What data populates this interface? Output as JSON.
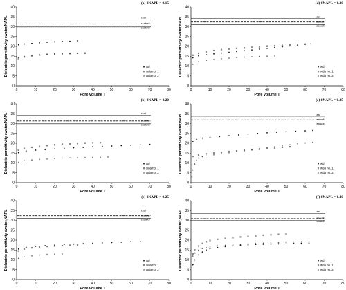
{
  "chart_data": [
    {
      "type": "scatter",
      "title": "(a) θNAPL = 0.15",
      "xlabel": "Pore volume T",
      "ylabel": "Dielectric permittivity εwater,NAPL",
      "xlim": [
        0,
        80
      ],
      "ylim": [
        0,
        40
      ],
      "xticks": [
        "0",
        "10",
        "20",
        "30",
        "40",
        "50",
        "60",
        "70",
        "80"
      ],
      "yticks": [
        "0",
        "5",
        "10",
        "15",
        "20",
        "25",
        "30",
        "35",
        "40"
      ],
      "reference_lines": [
        {
          "label": "εsat",
          "value": 33.8,
          "style": "solid"
        },
        {
          "label": "εsatwdi",
          "value": 31.4,
          "style": "dashed"
        },
        {
          "label": "εsatwdi",
          "value": 29.9,
          "style": "solid"
        }
      ],
      "series": [
        {
          "name": "wd",
          "marker": "circle",
          "x": [
            1,
            4,
            8,
            12,
            16,
            20,
            24,
            28,
            32
          ],
          "y": [
            20.8,
            21.2,
            21.5,
            21.8,
            22.1,
            22.3,
            22.5,
            22.6,
            22.8
          ]
        },
        {
          "name": "wda no. 1",
          "marker": "square",
          "x": [
            1,
            4,
            8,
            12,
            16,
            20,
            24,
            28,
            32,
            36
          ],
          "y": [
            13.8,
            14.6,
            15.2,
            15.6,
            15.9,
            16.1,
            16.3,
            16.4,
            16.5,
            16.6
          ]
        },
        {
          "name": "wda no. 2",
          "marker": "triangle",
          "x": [
            1,
            4,
            8,
            12,
            16,
            20,
            24,
            28,
            32,
            36
          ],
          "y": [
            14.3,
            15.0,
            15.5,
            15.8,
            16.0,
            16.2,
            16.3,
            16.4,
            16.5,
            16.6
          ]
        }
      ]
    },
    {
      "type": "scatter",
      "title": "(b) θNAPL = 0.20",
      "xlabel": "Pore volume T",
      "ylabel": "Dielectric permittivity εwater,NAPL",
      "xlim": [
        0,
        80
      ],
      "ylim": [
        0,
        40
      ],
      "xticks": [
        "0",
        "10",
        "20",
        "30",
        "40",
        "50",
        "60",
        "70",
        "80"
      ],
      "yticks": [
        "0",
        "5",
        "10",
        "15",
        "20",
        "25",
        "30",
        "35",
        "40"
      ],
      "reference_lines": [
        {
          "label": "εsat",
          "value": 34.3,
          "style": "solid"
        },
        {
          "label": "εsatwdi",
          "value": 31.3,
          "style": "dashed"
        },
        {
          "label": "εsatwdi",
          "value": 29.9,
          "style": "solid"
        }
      ],
      "series": [
        {
          "name": "wd",
          "marker": "circle",
          "x": [
            1,
            5,
            10,
            15,
            20,
            25,
            30,
            35,
            40,
            45,
            50,
            55,
            60,
            65,
            70
          ],
          "y": [
            15.2,
            16.1,
            16.5,
            16.8,
            17.1,
            17.4,
            17.7,
            17.9,
            18.2,
            18.4,
            18.6,
            18.8,
            19.0,
            19.2,
            19.4
          ]
        },
        {
          "name": "wda no. 1",
          "marker": "square",
          "x": [
            1,
            4,
            8,
            12,
            16,
            20,
            24,
            28,
            32,
            36,
            40,
            44
          ],
          "y": [
            16.5,
            17.3,
            17.9,
            18.4,
            18.8,
            19.2,
            19.5,
            19.7,
            19.9,
            20.1,
            20.2,
            20.3
          ]
        },
        {
          "name": "wda no. 2",
          "marker": "triangle",
          "x": [
            1,
            4,
            8,
            12,
            16,
            20,
            24,
            28,
            32,
            36,
            40,
            44,
            48
          ],
          "y": [
            10.3,
            11.2,
            11.6,
            11.9,
            12.1,
            12.3,
            12.5,
            12.6,
            12.7,
            12.8,
            12.9,
            13.0,
            13.1
          ]
        }
      ]
    },
    {
      "type": "scatter",
      "title": "(c) θNAPL = 0.25",
      "xlabel": "Pore volume T",
      "ylabel": "Dielectric permittivity εwater,NAPL",
      "xlim": [
        0,
        80
      ],
      "ylim": [
        0,
        40
      ],
      "xticks": [
        "0",
        "10",
        "20",
        "30",
        "40",
        "50",
        "60",
        "70",
        "80"
      ],
      "yticks": [
        "0",
        "5",
        "10",
        "15",
        "20",
        "25",
        "30",
        "35",
        "40"
      ],
      "reference_lines": [
        {
          "label": "εsat",
          "value": 34.2,
          "style": "solid"
        },
        {
          "label": "εsatwdi",
          "value": 32.4,
          "style": "dashed"
        },
        {
          "label": "εsatwdi",
          "value": 31.0,
          "style": "solid"
        }
      ],
      "series": [
        {
          "name": "wd",
          "marker": "circle",
          "x": [
            1,
            5,
            10,
            15,
            20,
            25,
            30,
            35,
            40,
            45,
            50,
            55,
            60,
            65
          ],
          "y": [
            15.5,
            16.4,
            16.9,
            17.2,
            17.5,
            17.8,
            18.0,
            18.2,
            18.4,
            18.6,
            18.8,
            19.0,
            19.2,
            19.3
          ]
        },
        {
          "name": "wda no. 1",
          "marker": "square",
          "x": [
            1,
            4,
            8,
            12,
            16,
            20,
            24,
            28,
            32
          ],
          "y": [
            14.5,
            15.5,
            16.1,
            16.5,
            16.8,
            17.0,
            17.2,
            17.4,
            17.5
          ]
        },
        {
          "name": "wda no. 2",
          "marker": "triangle",
          "x": [
            1,
            4,
            8,
            12,
            16,
            20,
            24
          ],
          "y": [
            10.8,
            11.6,
            12.1,
            12.5,
            12.8,
            13.0,
            13.1
          ]
        }
      ]
    },
    {
      "type": "scatter",
      "title": "(d) θNAPL = 0.30",
      "xlabel": "Pore volume T",
      "ylabel": "Dielectric permittivity εwater,NAPL",
      "xlim": [
        0,
        80
      ],
      "ylim": [
        0,
        40
      ],
      "xticks": [
        "0",
        "10",
        "20",
        "30",
        "40",
        "50",
        "60",
        "70",
        "80"
      ],
      "yticks": [
        "0",
        "5",
        "10",
        "15",
        "20",
        "25",
        "30",
        "35",
        "40"
      ],
      "reference_lines": [
        {
          "label": "εsat",
          "value": 34.1,
          "style": "solid"
        },
        {
          "label": "εsatwdi",
          "value": 32.4,
          "style": "dashed"
        },
        {
          "label": "εsatwdi",
          "value": 31.0,
          "style": "solid"
        }
      ],
      "series": [
        {
          "name": "wd",
          "marker": "circle",
          "x": [
            1,
            4,
            8,
            12,
            16,
            20,
            24,
            28,
            32,
            36,
            40,
            44,
            48,
            52,
            56,
            60,
            63
          ],
          "y": [
            14.2,
            15.2,
            15.8,
            16.2,
            16.6,
            17.0,
            17.4,
            17.8,
            18.2,
            18.6,
            19.0,
            19.4,
            19.8,
            20.2,
            20.6,
            21.0,
            21.3
          ]
        },
        {
          "name": "wda no. 1",
          "marker": "square",
          "x": [
            1,
            4,
            8,
            12,
            16,
            20,
            24,
            28,
            32,
            36,
            40,
            44,
            48,
            52,
            56,
            60
          ],
          "y": [
            15.5,
            16.5,
            17.3,
            17.9,
            18.4,
            18.7,
            19.0,
            19.2,
            19.5,
            19.8,
            20.1,
            20.3,
            20.5,
            20.7,
            20.9,
            21.1
          ]
        },
        {
          "name": "wda no. 2",
          "marker": "triangle",
          "x": [
            1,
            4,
            8,
            12,
            16,
            20,
            24,
            28,
            32,
            36,
            40,
            44
          ],
          "y": [
            11.0,
            12.3,
            12.9,
            13.4,
            13.8,
            14.1,
            14.4,
            14.6,
            14.8,
            15.0,
            15.1,
            15.2
          ]
        }
      ]
    },
    {
      "type": "scatter",
      "title": "(e) θNAPL = 0.35",
      "xlabel": "Pore volume T",
      "ylabel": "Dielectric permittivity εwater,NAPL",
      "xlim": [
        0,
        80
      ],
      "ylim": [
        0,
        40
      ],
      "xticks": [
        "0",
        "10",
        "20",
        "30",
        "40",
        "50",
        "60",
        "70",
        "80"
      ],
      "yticks": [
        "0",
        "5",
        "10",
        "15",
        "20",
        "25",
        "30",
        "35",
        "40"
      ],
      "reference_lines": [
        {
          "label": "εsat",
          "value": 33.7,
          "style": "solid"
        },
        {
          "label": "εsatwdi",
          "value": 31.8,
          "style": "dashed"
        },
        {
          "label": "εsatwdi",
          "value": 30.3,
          "style": "solid"
        }
      ],
      "series": [
        {
          "name": "wd",
          "marker": "circle",
          "x": [
            1,
            3,
            6,
            10,
            15,
            20,
            25,
            30,
            35,
            40,
            45,
            50,
            55,
            60,
            64
          ],
          "y": [
            21.0,
            22.0,
            22.6,
            23.0,
            23.4,
            23.8,
            24.2,
            24.6,
            25.0,
            25.3,
            25.6,
            25.9,
            26.1,
            26.3,
            26.5
          ]
        },
        {
          "name": "wda no. 1",
          "marker": "square",
          "x": [
            1,
            4,
            8,
            12,
            16,
            20,
            24,
            28,
            32,
            36,
            40,
            44,
            48,
            52
          ],
          "y": [
            13.3,
            14.0,
            14.6,
            15.0,
            15.4,
            15.8,
            16.1,
            16.4,
            16.7,
            17.0,
            17.3,
            17.6,
            17.9,
            18.2
          ]
        },
        {
          "name": "wda no. 2",
          "marker": "triangle",
          "x": [
            0.5,
            1,
            2,
            3,
            4,
            6,
            8,
            12,
            16,
            20,
            24,
            28,
            32,
            36,
            40,
            44,
            48,
            52,
            56,
            60,
            64
          ],
          "y": [
            3.0,
            6.5,
            9.5,
            11.5,
            12.5,
            13.2,
            13.6,
            14.2,
            14.8,
            15.3,
            15.8,
            16.3,
            16.8,
            17.3,
            17.8,
            18.3,
            18.8,
            19.3,
            19.8,
            20.2,
            20.6
          ]
        }
      ]
    },
    {
      "type": "scatter",
      "title": "(f) θNAPL = 0.40",
      "xlabel": "Pore volume T",
      "ylabel": "Dielectric permittivity εwater,NAPL",
      "xlim": [
        0,
        80
      ],
      "ylim": [
        0,
        40
      ],
      "xticks": [
        "0",
        "10",
        "20",
        "30",
        "40",
        "50",
        "60",
        "70",
        "80"
      ],
      "yticks": [
        "0",
        "5",
        "10",
        "15",
        "20",
        "25",
        "30",
        "35",
        "40"
      ],
      "reference_lines": [
        {
          "label": "εsat",
          "value": 33.6,
          "style": "solid"
        },
        {
          "label": "εsatwdi",
          "value": 30.9,
          "style": "dashed"
        },
        {
          "label": "εsatwdi",
          "value": 30.0,
          "style": "solid"
        }
      ],
      "series": [
        {
          "name": "wd",
          "marker": "circle",
          "x": [
            1,
            2,
            4,
            6,
            8,
            10,
            14,
            18,
            22,
            26,
            30,
            34,
            38,
            42,
            46,
            50,
            54,
            58,
            62
          ],
          "y": [
            7.5,
            10.0,
            12.5,
            14.0,
            15.0,
            15.6,
            16.2,
            16.7,
            17.1,
            17.4,
            17.6,
            17.8,
            17.9,
            18.0,
            18.1,
            18.2,
            18.3,
            18.4,
            18.5
          ]
        },
        {
          "name": "wda no. 1",
          "marker": "square",
          "x": [
            1,
            2,
            4,
            6,
            8,
            10,
            14,
            18,
            22,
            26,
            30,
            34,
            38,
            42,
            46,
            50
          ],
          "y": [
            13.0,
            15.0,
            17.0,
            18.3,
            19.2,
            19.8,
            20.4,
            20.8,
            21.2,
            21.6,
            21.9,
            22.2,
            22.5,
            22.7,
            22.9,
            23.1
          ]
        },
        {
          "name": "wda no. 2",
          "marker": "triangle",
          "x": [
            1,
            2,
            4,
            6,
            8,
            10,
            14,
            18,
            22,
            26,
            30,
            34,
            38,
            42,
            46,
            50,
            54,
            58,
            62
          ],
          "y": [
            12.0,
            13.5,
            15.0,
            15.8,
            16.3,
            16.7,
            17.1,
            17.4,
            17.7,
            17.9,
            18.1,
            18.3,
            18.5,
            18.7,
            18.8,
            19.0,
            19.1,
            19.2,
            19.3
          ]
        }
      ]
    }
  ]
}
